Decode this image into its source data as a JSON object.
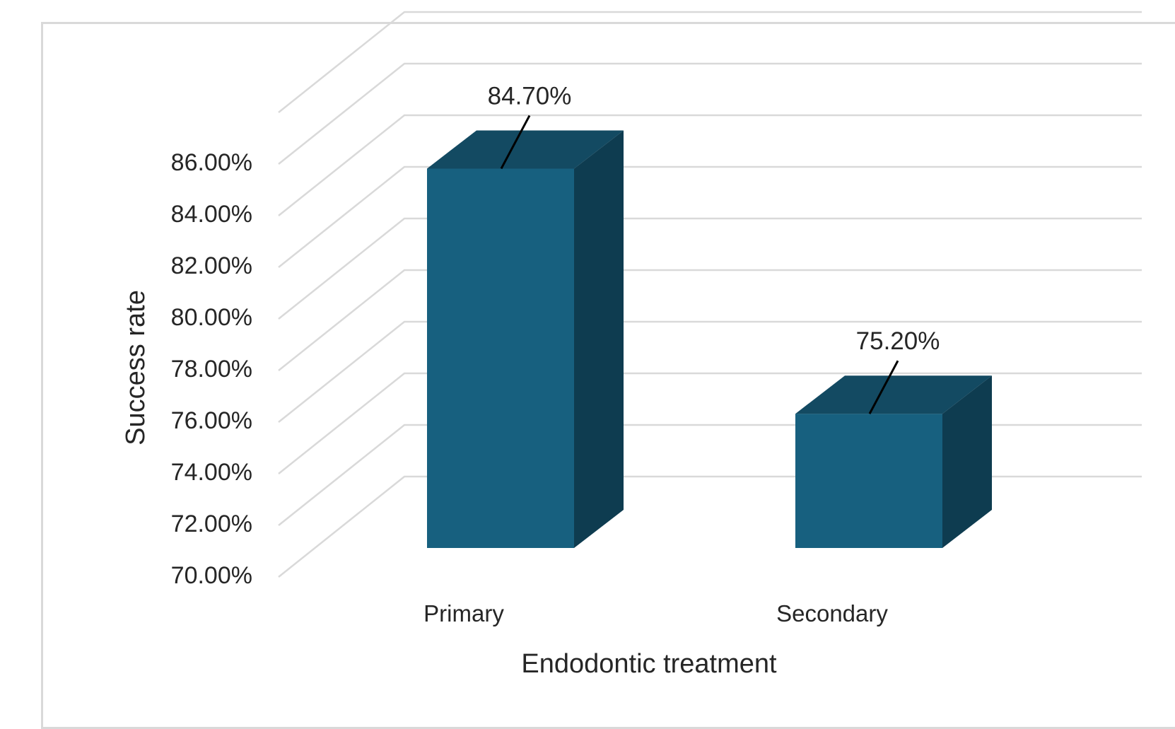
{
  "chart_data": {
    "type": "bar",
    "style": "3d",
    "categories": [
      "Primary",
      "Secondary"
    ],
    "values": [
      84.7,
      75.2
    ],
    "data_labels": [
      "84.70%",
      "75.20%"
    ],
    "xlabel": "Endodontic treatment",
    "ylabel": "Success rate",
    "ylim": [
      70,
      86
    ],
    "y_ticks": [
      70,
      72,
      74,
      76,
      78,
      80,
      82,
      84,
      86
    ],
    "y_tick_labels": [
      "70.00%",
      "72.00%",
      "74.00%",
      "76.00%",
      "78.00%",
      "80.00%",
      "82.00%",
      "84.00%",
      "86.00%"
    ],
    "grid": true,
    "legend": false,
    "colors": {
      "bar_front": "#17607f",
      "bar_top": "#134a62",
      "bar_side": "#0e3c50",
      "grid": "#d9d9d9",
      "text": "#262626"
    }
  }
}
